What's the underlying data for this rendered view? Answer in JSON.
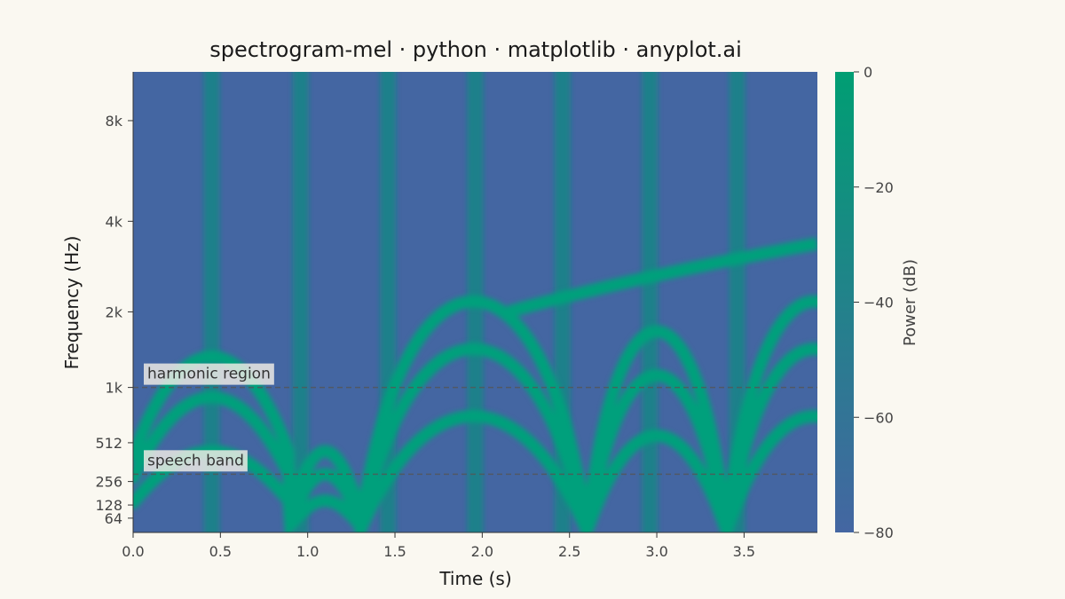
{
  "chart_data": {
    "type": "heatmap",
    "title": "spectrogram-mel · python · matplotlib · anyplot.ai",
    "xlabel": "Time (s)",
    "ylabel": "Frequency (Hz)",
    "x_ticks": [
      "0.0",
      "0.5",
      "1.0",
      "1.5",
      "2.0",
      "2.5",
      "3.0",
      "3.5"
    ],
    "x_tick_values": [
      0.0,
      0.5,
      1.0,
      1.5,
      2.0,
      2.5,
      3.0,
      3.5
    ],
    "xlim": [
      0,
      3.92
    ],
    "y_scale": "mel",
    "y_ticks": [
      "64",
      "128",
      "256",
      "512",
      "1k",
      "2k",
      "4k",
      "8k"
    ],
    "y_tick_values": [
      64,
      128,
      256,
      512,
      1000,
      2000,
      4000,
      8000
    ],
    "ylim": [
      0,
      11025
    ],
    "colorbar": {
      "label": "Power (dB)",
      "ticks": [
        "0",
        "−20",
        "−40",
        "−60",
        "−80"
      ],
      "tick_values": [
        0,
        -20,
        -40,
        -60,
        -80
      ],
      "range": [
        -80,
        0
      ],
      "colors": [
        "#4466A2",
        "#009E73"
      ]
    },
    "annotations": [
      {
        "text": "harmonic region",
        "y": 1000
      },
      {
        "text": "speech band",
        "y": 300
      }
    ],
    "transient_times_s": [
      0.45,
      0.96,
      1.46,
      1.96,
      2.46,
      2.96,
      3.46
    ]
  }
}
